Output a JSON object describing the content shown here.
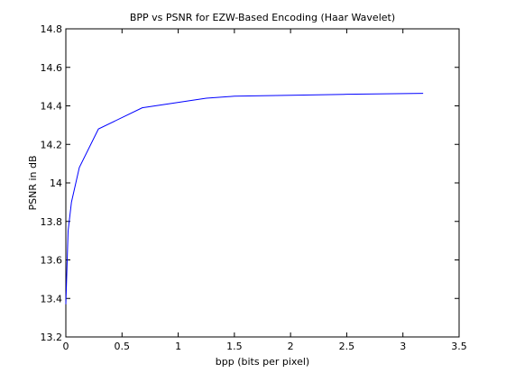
{
  "chart_data": {
    "type": "line",
    "title": "BPP vs PSNR for EZW-Based Encoding (Haar Wavelet)",
    "xlabel": "bpp (bits per pixel)",
    "ylabel": "PSNR in dB",
    "xlim": [
      0,
      3.5
    ],
    "ylim": [
      13.2,
      14.8
    ],
    "x_ticks": [
      0,
      0.5,
      1,
      1.5,
      2,
      2.5,
      3,
      3.5
    ],
    "x_tick_labels": [
      "0",
      "0.5",
      "1",
      "1.5",
      "2",
      "2.5",
      "3",
      "3.5"
    ],
    "y_ticks": [
      13.2,
      13.4,
      13.6,
      13.8,
      14,
      14.2,
      14.4,
      14.6,
      14.8
    ],
    "y_tick_labels": [
      "13.2",
      "13.4",
      "13.6",
      "13.8",
      "14",
      "14.2",
      "14.4",
      "14.6",
      "14.8"
    ],
    "grid": false,
    "series": [
      {
        "name": "PSNR",
        "color": "#0000ff",
        "x": [
          0.0,
          0.01,
          0.02,
          0.05,
          0.12,
          0.29,
          0.68,
          1.25,
          1.5,
          2.0,
          2.5,
          3.18
        ],
        "y": [
          13.37,
          13.56,
          13.75,
          13.9,
          14.08,
          14.28,
          14.39,
          14.44,
          14.45,
          14.455,
          14.46,
          14.465
        ]
      }
    ]
  }
}
